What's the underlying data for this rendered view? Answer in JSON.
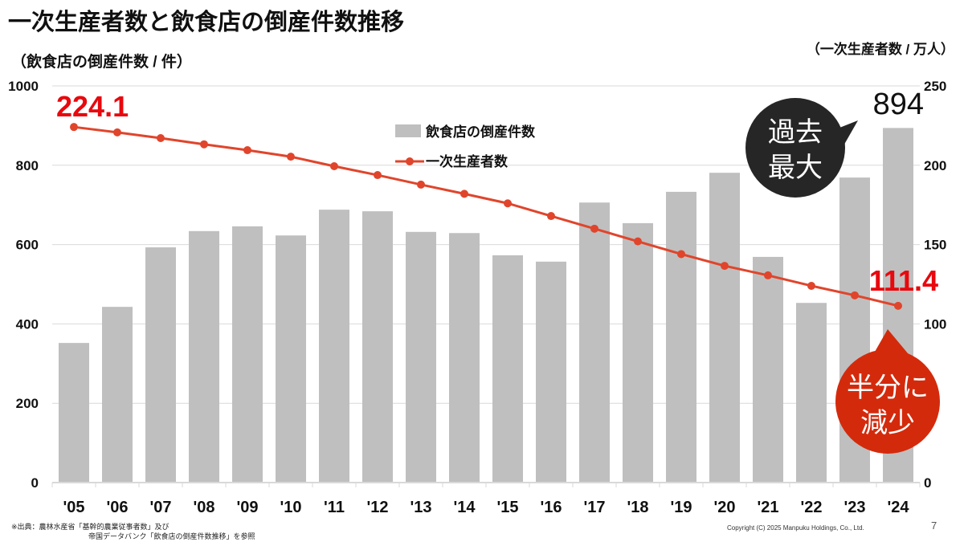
{
  "title": "一次生産者数と飲食店の倒産件数推移",
  "left_unit": "（飲食店の倒産件数 / 件）",
  "right_unit": "（一次生産者数 / 万人）",
  "source_line1": "※出典：農林水産省「基幹的農業従事者数」及び",
  "source_line2": "帝国データバンク「飲食店の倒産件数推移」を参照",
  "copyright": "Copyright (C) 2025 Manpuku Holdings, Co., Ltd.",
  "page_number": "7",
  "callouts": {
    "record_high": "過去最大",
    "record_high_l1": "過去",
    "record_high_l2": "最大",
    "halved": "半分に減少",
    "halved_l1": "半分に",
    "halved_l2": "減少"
  },
  "colors": {
    "bar": "#bfbfbf",
    "line": "#e0452c",
    "label_red": "#e8080d",
    "bubble_dark": "#262626",
    "bubble_red": "#d42a0c"
  },
  "chart_data": {
    "type": "bar+line",
    "title": "一次生産者数と飲食店の倒産件数推移",
    "categories": [
      "'05",
      "'06",
      "'07",
      "'08",
      "'09",
      "'10",
      "'11",
      "'12",
      "'13",
      "'14",
      "'15",
      "'16",
      "'17",
      "'18",
      "'19",
      "'20",
      "'21",
      "'22",
      "'23",
      "'24"
    ],
    "series": [
      {
        "name": "飲食店の倒産件数",
        "type": "bar",
        "axis": "left",
        "values": [
          352,
          443,
          593,
          634,
          646,
          623,
          688,
          684,
          632,
          629,
          573,
          557,
          706,
          654,
          733,
          781,
          569,
          453,
          769,
          894
        ]
      },
      {
        "name": "一次生産者数",
        "type": "line",
        "axis": "right",
        "values": [
          224.1,
          220.7,
          217.1,
          213.2,
          209.5,
          205.4,
          199.4,
          193.8,
          187.8,
          182.0,
          176.0,
          168.0,
          160.0,
          152.0,
          144.0,
          136.6,
          130.6,
          124.0,
          118.0,
          111.4
        ]
      }
    ],
    "data_labels": {
      "bar_last": "894",
      "line_first": "224.1",
      "line_last": "111.4"
    },
    "ylim_left": [
      0,
      1000
    ],
    "ylim_right": [
      0,
      250
    ],
    "yticks_left": [
      "0",
      "200",
      "400",
      "600",
      "800",
      "1000"
    ],
    "yticks_right": [
      "0",
      "50",
      "100",
      "150",
      "200",
      "250"
    ],
    "ylabel_left": "（飲食店の倒産件数 / 件）",
    "ylabel_right": "（一次生産者数 / 万人）",
    "legend": [
      "飲食店の倒産件数",
      "一次生産者数"
    ],
    "legend_position": "top-center",
    "grid": true
  }
}
